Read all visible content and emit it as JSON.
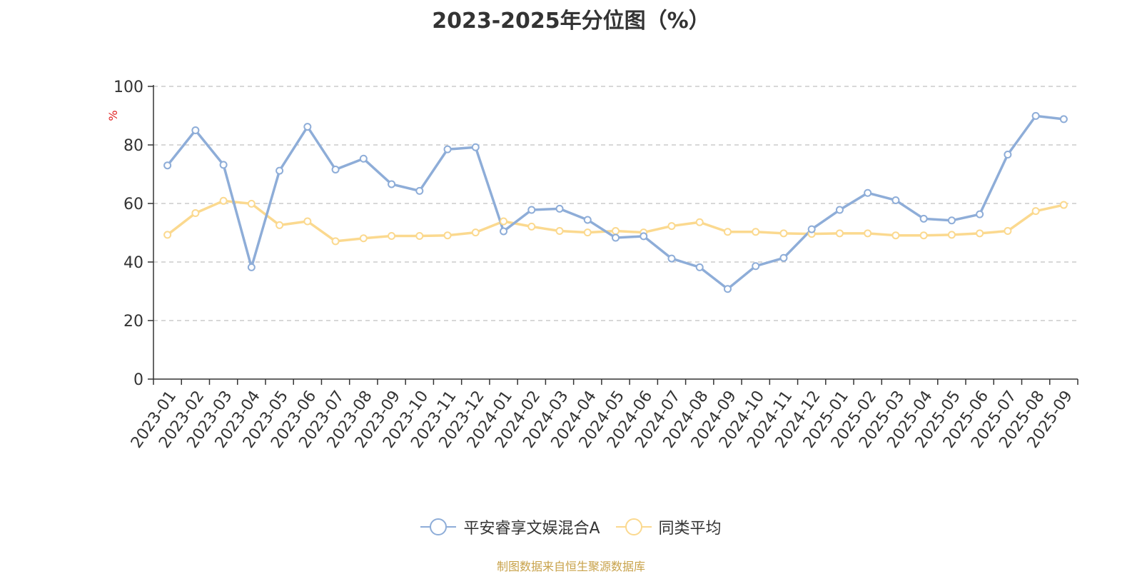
{
  "title": "2023-2025年分位图（%）",
  "source": "制图数据来自恒生聚源数据库",
  "colors": {
    "series1": "#8eadd8",
    "series2": "#fbd98f",
    "ylabel": "#e02020"
  },
  "chart_data": {
    "type": "line",
    "title": "2023-2025年分位图（%）",
    "ylabel": "%",
    "xlabel": "",
    "ylim": [
      0,
      100
    ],
    "yticks": [
      0,
      20,
      40,
      60,
      80,
      100
    ],
    "grid": true,
    "legend": "bottom-center",
    "categories": [
      "2023-01",
      "2023-02",
      "2023-03",
      "2023-04",
      "2023-05",
      "2023-06",
      "2023-07",
      "2023-08",
      "2023-09",
      "2023-10",
      "2023-11",
      "2023-12",
      "2024-01",
      "2024-02",
      "2024-03",
      "2024-04",
      "2024-05",
      "2024-06",
      "2024-07",
      "2024-08",
      "2024-09",
      "2024-10",
      "2024-11",
      "2024-12",
      "2025-01",
      "2025-02",
      "2025-03",
      "2025-04",
      "2025-05",
      "2025-06",
      "2025-07",
      "2025-08",
      "2025-09"
    ],
    "series": [
      {
        "name": "平安睿享文娱混合A",
        "values": [
          73,
          85,
          73.2,
          38.2,
          71.2,
          86.2,
          71.6,
          75.3,
          66.6,
          64.3,
          78.5,
          79.2,
          50.5,
          57.8,
          58.2,
          54.4,
          48.3,
          48.8,
          41.2,
          38.2,
          30.8,
          38.6,
          41.4,
          51.2,
          57.8,
          63.6,
          61.1,
          54.8,
          54.2,
          56.3,
          76.7,
          89.9,
          88.8
        ]
      },
      {
        "name": "同类平均",
        "values": [
          49.3,
          56.7,
          60.9,
          59.9,
          52.6,
          53.9,
          47.1,
          48.1,
          48.9,
          48.9,
          49.1,
          50.1,
          53.9,
          52.1,
          50.6,
          50.1,
          50.6,
          50.1,
          52.3,
          53.6,
          50.3,
          50.3,
          49.8,
          49.6,
          49.8,
          49.8,
          49.1,
          49.1,
          49.3,
          49.8,
          50.6,
          57.4,
          59.5
        ]
      }
    ]
  }
}
